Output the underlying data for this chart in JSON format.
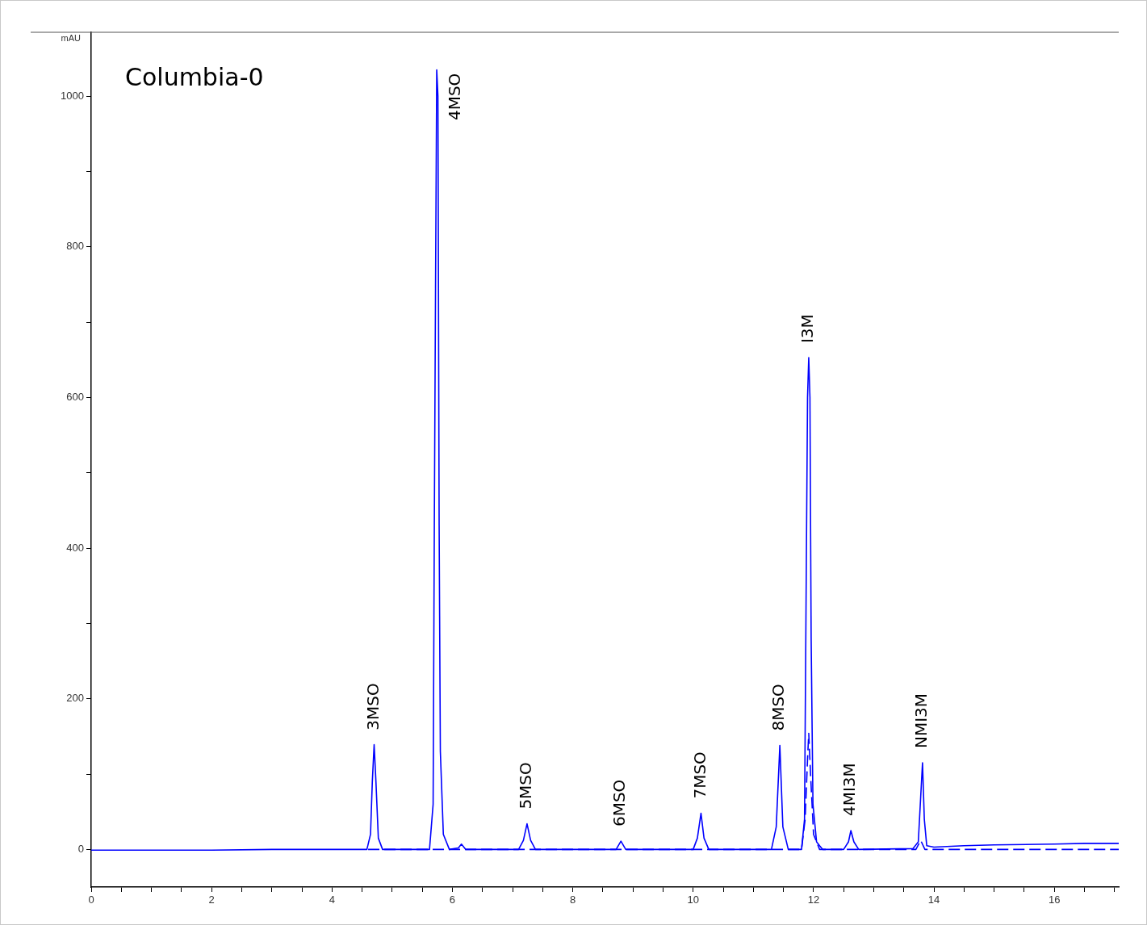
{
  "chart_data": {
    "type": "line",
    "title": "Columbia-0",
    "ylabel": "mAU",
    "xlim": [
      0,
      17.07
    ],
    "ylim": [
      -50,
      1085
    ],
    "xticks": [
      0,
      {
        "value": 0.5,
        "label": null
      },
      {
        "value": 1,
        "label": null
      },
      {
        "value": 1.5,
        "label": null
      },
      2,
      {
        "value": 2.5,
        "label": null
      },
      {
        "value": 3,
        "label": null
      },
      {
        "value": 3.5,
        "label": null
      },
      4,
      {
        "value": 4.5,
        "label": null
      },
      {
        "value": 5,
        "label": null
      },
      {
        "value": 5.5,
        "label": null
      },
      6,
      {
        "value": 6.5,
        "label": null
      },
      {
        "value": 7,
        "label": null
      },
      {
        "value": 7.5,
        "label": null
      },
      8,
      {
        "value": 8.5,
        "label": null
      },
      {
        "value": 9,
        "label": null
      },
      {
        "value": 9.5,
        "label": null
      },
      10,
      {
        "value": 10.5,
        "label": null
      },
      {
        "value": 11,
        "label": null
      },
      {
        "value": 11.5,
        "label": null
      },
      12,
      {
        "value": 12.5,
        "label": null
      },
      {
        "value": 13,
        "label": null
      },
      {
        "value": 13.5,
        "label": null
      },
      14,
      {
        "value": 14.5,
        "label": null
      },
      {
        "value": 15,
        "label": null
      },
      {
        "value": 15.5,
        "label": null
      },
      16,
      {
        "value": 16.5,
        "label": null
      },
      {
        "value": 17,
        "label": null
      }
    ],
    "yticks": [
      0,
      {
        "value": 100,
        "label": null
      },
      200,
      {
        "value": 300,
        "label": null
      },
      400,
      {
        "value": 500,
        "label": null
      },
      600,
      {
        "value": 700,
        "label": null
      },
      800,
      {
        "value": 900,
        "label": null
      },
      1000
    ],
    "grid": false,
    "legend": false,
    "marker": "none",
    "series": [
      {
        "color": "#0000ff",
        "line_style": "solid",
        "x": [
          0,
          1,
          2,
          3,
          4,
          4.4,
          4.58,
          4.64,
          4.67,
          4.7,
          4.73,
          4.77,
          4.84,
          5.2,
          5.62,
          5.68,
          5.7,
          5.72,
          5.74,
          5.76,
          5.78,
          5.8,
          5.85,
          5.95,
          6.1,
          6.15,
          6.22,
          7.1,
          7.18,
          7.24,
          7.3,
          7.38,
          8.72,
          8.8,
          8.88,
          10,
          10.07,
          10.13,
          10.18,
          10.26,
          11.3,
          11.38,
          11.44,
          11.49,
          11.58,
          11.8,
          11.85,
          11.88,
          11.9,
          11.92,
          11.94,
          11.96,
          11.99,
          12.05,
          12.15,
          12.5,
          12.58,
          12.62,
          12.67,
          12.75,
          13.65,
          13.74,
          13.78,
          13.81,
          13.84,
          13.88,
          14,
          14.5,
          15,
          16,
          16.5,
          17.07
        ],
        "values": [
          -1,
          -1,
          -1,
          0,
          0,
          0,
          0,
          20,
          90,
          139,
          90,
          15,
          0,
          0,
          0,
          60,
          430,
          745,
          1035,
          1000,
          430,
          130,
          20,
          0,
          2,
          7,
          0,
          0,
          12,
          34,
          12,
          0,
          0,
          11,
          0,
          0,
          15,
          48,
          15,
          0,
          0,
          30,
          138,
          30,
          0,
          0,
          40,
          380,
          600,
          653,
          600,
          280,
          60,
          10,
          0,
          0,
          10,
          25,
          10,
          0,
          1,
          10,
          70,
          115,
          40,
          5,
          3,
          5,
          6,
          7,
          8,
          8
        ]
      },
      {
        "color": "#0000ff",
        "line_style": "dashed",
        "x": [
          4.6,
          11.8,
          11.86,
          11.9,
          11.92,
          11.95,
          12,
          12.1,
          13.7,
          13.78,
          13.85,
          17.07
        ],
        "values": [
          0,
          0,
          40,
          120,
          154,
          100,
          20,
          0,
          0,
          12,
          0,
          0
        ]
      }
    ],
    "annotations": [
      {
        "text": "3MSO",
        "x": 4.7,
        "y": 139
      },
      {
        "text": "4MSO",
        "x": 5.74,
        "y": 1035
      },
      {
        "text": "5MSO",
        "x": 7.24,
        "y": 34
      },
      {
        "text": "6MSO",
        "x": 8.8,
        "y": 11
      },
      {
        "text": "7MSO",
        "x": 10.13,
        "y": 48
      },
      {
        "text": "8MSO",
        "x": 11.44,
        "y": 138
      },
      {
        "text": "I3M",
        "x": 11.92,
        "y": 653
      },
      {
        "text": "4MI3M",
        "x": 12.62,
        "y": 25
      },
      {
        "text": "NMI3M",
        "x": 13.81,
        "y": 115
      }
    ]
  }
}
